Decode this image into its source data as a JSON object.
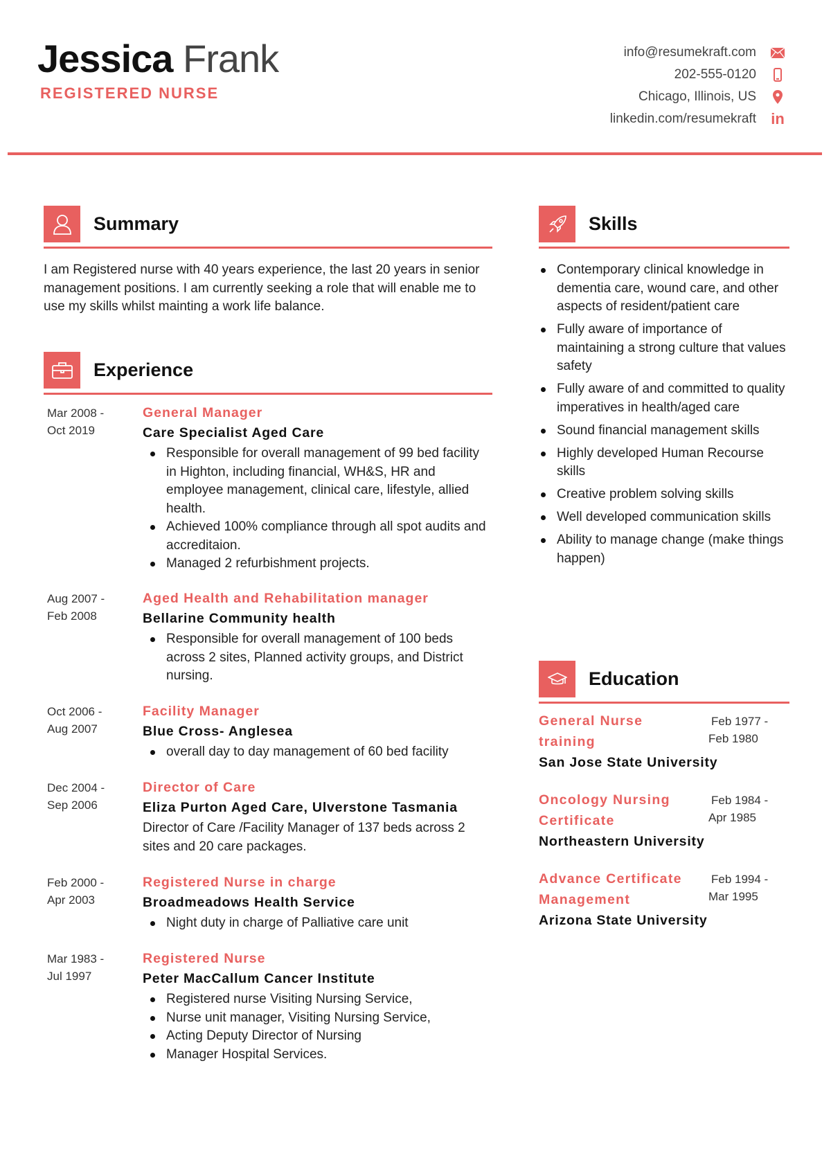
{
  "header": {
    "first_name": "Jessica",
    "last_name": "Frank",
    "role": "REGISTERED NURSE",
    "contacts": [
      {
        "text": "info@resumekraft.com",
        "icon": "envelope-icon"
      },
      {
        "text": "202-555-0120",
        "icon": "phone-icon"
      },
      {
        "text": "Chicago, Illinois, US",
        "icon": "location-pin-icon"
      },
      {
        "text": "linkedin.com/resumekraft",
        "icon": "linkedin-icon"
      }
    ]
  },
  "accent_color": "#e8605f",
  "summary": {
    "title": "Summary",
    "icon": "user-icon",
    "text": "I am Registered nurse with 40 years experience, the last 20 years in senior management positions. I am currently seeking a role that will enable me to use my skills whilst mainting a work life balance."
  },
  "experience": {
    "title": "Experience",
    "icon": "briefcase-icon",
    "items": [
      {
        "dates": [
          "Mar 2008 -",
          "Oct 2019"
        ],
        "title": "General Manager",
        "company": "Care Specialist Aged Care",
        "bullets": [
          "Responsible for overall management of 99 bed facility in Highton, including financial, WH&S, HR  and employee management, clinical care, lifestyle, allied health.",
          "Achieved 100% compliance through all spot audits and accreditaion.",
          "Managed 2 refurbishment projects."
        ]
      },
      {
        "dates": [
          "Aug 2007 -",
          "Feb 2008"
        ],
        "title": "Aged Health and Rehabilitation manager",
        "company": "Bellarine Community health",
        "bullets": [
          "Responsible for overall management of 100 beds across 2 sites, Planned activity groups, and District nursing."
        ]
      },
      {
        "dates": [
          "Oct 2006 -",
          "Aug 2007"
        ],
        "title": "Facility Manager",
        "company": "Blue Cross- Anglesea",
        "bullets": [
          "overall day to day management of 60 bed facility"
        ]
      },
      {
        "dates": [
          "Dec 2004 -",
          "Sep 2006"
        ],
        "title": "Director of Care",
        "company": "Eliza Purton Aged Care, Ulverstone Tasmania",
        "text": "Director of Care /Facility Manager of 137 beds across 2 sites and 20 care packages."
      },
      {
        "dates": [
          "Feb 2000 -",
          "Apr 2003"
        ],
        "title": "Registered Nurse in charge",
        "company": "Broadmeadows Health Service",
        "bullets": [
          "Night duty in charge of Palliative care unit"
        ]
      },
      {
        "dates": [
          "Mar 1983 -",
          "Jul 1997"
        ],
        "title": "Registered Nurse",
        "company": "Peter MacCallum Cancer Institute",
        "bullets": [
          "Registered nurse Visiting Nursing Service,",
          "Nurse unit manager, Visiting Nursing Service,",
          "Acting Deputy Director of Nursing",
          "Manager Hospital Services."
        ]
      }
    ]
  },
  "skills": {
    "title": "Skills",
    "icon": "rocket-icon",
    "items": [
      "Contemporary clinical knowledge in dementia care, wound care, and other aspects of resident/patient care",
      "Fully aware of importance of maintaining a strong culture that values safety",
      "Fully aware of and committed to quality imperatives in health/aged care",
      "Sound financial management skills",
      "Highly developed Human Recourse skills",
      "Creative problem solving skills",
      "Well developed communication skills",
      "Ability to manage change (make things happen)"
    ]
  },
  "education": {
    "title": "Education",
    "icon": "graduation-cap-icon",
    "items": [
      {
        "title": "General Nurse training",
        "school": "San Jose State University",
        "dates": [
          "Feb 1977 -",
          "Feb 1980"
        ]
      },
      {
        "title": "Oncology Nursing Certificate",
        "school": "Northeastern University",
        "dates": [
          "Feb 1984 -",
          "Apr 1985"
        ]
      },
      {
        "title": "Advance Certificate Management",
        "school": "Arizona State University",
        "dates": [
          "Feb 1994 -",
          "Mar 1995"
        ]
      }
    ]
  }
}
